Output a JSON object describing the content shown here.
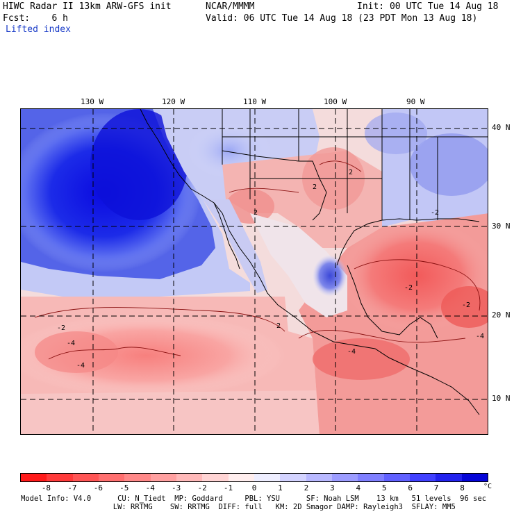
{
  "header": {
    "title": "HIWC Radar II 13km ARW-GFS init",
    "source": "NCAR/MMMM",
    "init": "Init: 00 UTC Tue 14 Aug 18",
    "forecast": "Fcst:    6 h",
    "valid": "Valid: 06 UTC Tue 14 Aug 18 (23 PDT Mon 13 Aug 18)",
    "field": "Lifted index"
  },
  "map": {
    "longitude_labels": [
      "130 W",
      "120 W",
      "110 W",
      "100 W",
      "90 W"
    ],
    "latitude_labels": [
      "40 N",
      "30 N",
      "20 N",
      "10 N"
    ],
    "contour_labels": [
      "2",
      "2",
      "-2",
      "-2",
      "-2",
      "-4",
      "-4",
      "-4",
      "-4",
      "2",
      "-2",
      "2"
    ]
  },
  "colorbar": {
    "ticks": [
      "-8",
      "-7",
      "-6",
      "-5",
      "-4",
      "-3",
      "-2",
      "-1",
      "0",
      "1",
      "2",
      "3",
      "4",
      "5",
      "6",
      "7",
      "8"
    ],
    "unit": "°C",
    "colors": [
      "#ff1a1a",
      "#ff3a3a",
      "#ff5555",
      "#ff6f6f",
      "#ff8888",
      "#ffa0a0",
      "#ffb9b9",
      "#ffd4d4",
      "#ffeeee",
      "#eeeeff",
      "#d3d3ff",
      "#b8b8ff",
      "#9c9cff",
      "#7f7fff",
      "#6060ff",
      "#4040ff",
      "#2222ee",
      "#0505d8"
    ]
  },
  "footer": {
    "line1": "Model Info: V4.0      CU: N_Tiedt  MP: Goddard     PBL: YSU      SF: Noah LSM    13 km   51 levels  96 sec",
    "line2": "                     LW: RRTMG    SW: RRTMG  DIFF: full   KM: 2D Smagor DAMP: Rayleigh3  SFLAY: MM5"
  }
}
